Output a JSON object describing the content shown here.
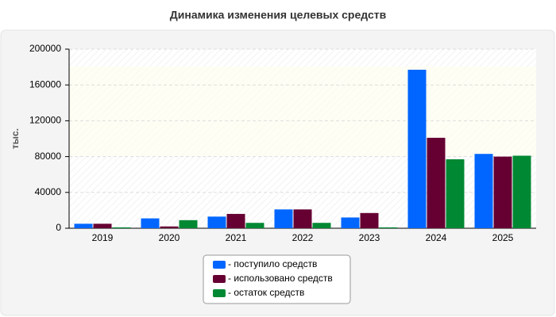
{
  "chart_data": {
    "type": "bar",
    "title": "Динамика изменения целевых средств",
    "y_label": "тыс.",
    "categories": [
      "2019",
      "2020",
      "2021",
      "2022",
      "2023",
      "2024",
      "2025"
    ],
    "series": [
      {
        "name": "- поступило средств",
        "color": "#0066ff",
        "values": [
          5000,
          11000,
          13000,
          21000,
          12000,
          177000,
          83000
        ]
      },
      {
        "name": "- использовано средств",
        "color": "#660033",
        "values": [
          5000,
          2000,
          16000,
          21000,
          17000,
          101000,
          80000
        ]
      },
      {
        "name": "- остаток средств",
        "color": "#008833",
        "values": [
          1000,
          9000,
          6000,
          6000,
          1000,
          77000,
          81000
        ]
      }
    ],
    "ylim": [
      0,
      200000
    ],
    "yticks": [
      0,
      40000,
      80000,
      120000,
      160000,
      200000
    ],
    "grid": true
  }
}
